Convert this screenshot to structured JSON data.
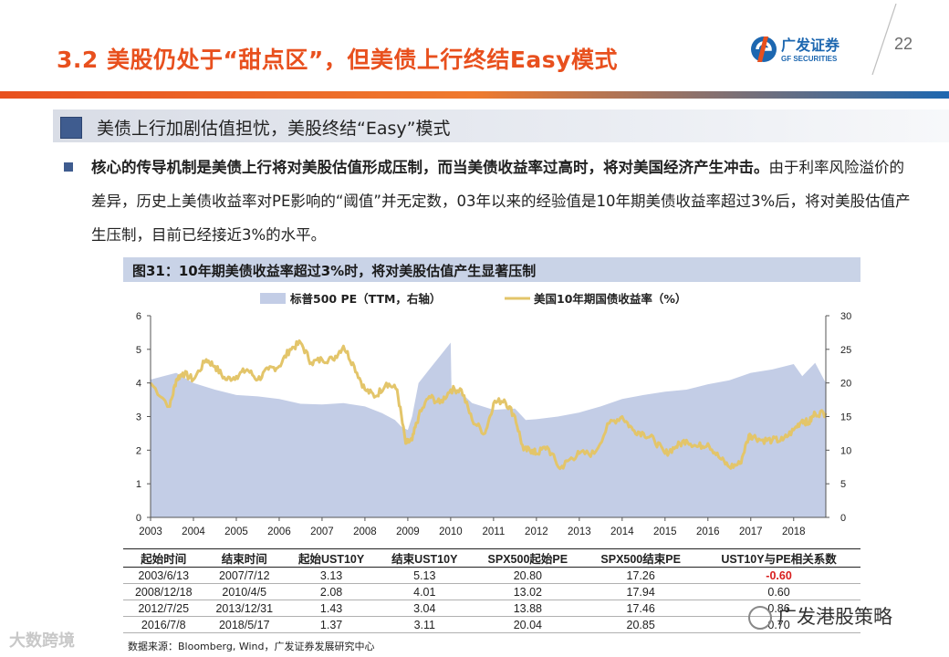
{
  "header": {
    "title": "3.2 美股仍处于“甜点区”，但美债上行终结Easy模式",
    "page_number": "22",
    "logo_cn": "广发证券",
    "logo_en": "GF SECURITIES"
  },
  "colors": {
    "accent": "#e8501e",
    "navy": "#3f5c8f",
    "pe_fill": "#c3cde6",
    "yield_line": "#e3c56a",
    "negative": "#d81e1e"
  },
  "subhead": "美债上行加剧估值担忧，美股终结“Easy”模式",
  "paragraph": {
    "bold": "核心的传导机制是美债上行将对美股估值形成压制，而当美债收益率过高时，将对美国经济产生冲击。",
    "normal": "由于利率风险溢价的差异，历史上美债收益率对PE影响的“阈值”并无定数，03年以来的经验值是10年期美债收益率超过3%后，将对美股估值产生压制，目前已经接近3%的水平。"
  },
  "figure_title": "图31：10年期美债收益率超过3%时，将对美股估值产生显著压制",
  "chart_data": {
    "type": "area",
    "xlabel": "",
    "x_ticks": [
      "2003",
      "2004",
      "2005",
      "2006",
      "2007",
      "2008",
      "2009",
      "2010",
      "2011",
      "2012",
      "2013",
      "2014",
      "2015",
      "2016",
      "2017",
      "2018"
    ],
    "xlim": [
      2003.0,
      2018.75
    ],
    "y_left": {
      "label": "",
      "ylim": [
        0,
        6
      ],
      "ticks": [
        "0",
        "1",
        "2",
        "3",
        "4",
        "5",
        "6"
      ]
    },
    "y_right": {
      "label": "",
      "ylim": [
        0,
        30
      ],
      "ticks": [
        "0",
        "5",
        "10",
        "15",
        "20",
        "25",
        "30"
      ]
    },
    "legend_placement": "top",
    "series": [
      {
        "name": "标普500 PE（TTM，右轴）",
        "axis": "right",
        "style": "area",
        "x": [
          2003.0,
          2003.3,
          2003.6,
          2004.0,
          2004.5,
          2005.0,
          2005.5,
          2006.0,
          2006.5,
          2007.0,
          2007.5,
          2008.0,
          2008.4,
          2008.7,
          2008.85,
          2009.0,
          2009.1,
          2009.25,
          2009.5,
          2009.75,
          2010.0,
          2010.02,
          2010.25,
          2010.5,
          2011.0,
          2011.5,
          2011.75,
          2012.0,
          2012.5,
          2013.0,
          2013.5,
          2014.0,
          2014.5,
          2015.0,
          2015.5,
          2016.0,
          2016.5,
          2017.0,
          2017.5,
          2018.0,
          2018.2,
          2018.5,
          2018.75
        ],
        "values": [
          20.5,
          21.0,
          21.5,
          20.0,
          19.0,
          18.2,
          18.0,
          17.6,
          16.9,
          16.8,
          17.0,
          16.5,
          15.5,
          14.5,
          13.5,
          13.0,
          15.0,
          20.0,
          22.0,
          24.0,
          26.0,
          19.0,
          18.5,
          17.0,
          16.0,
          16.2,
          14.5,
          14.6,
          15.0,
          15.6,
          16.5,
          17.6,
          18.2,
          18.7,
          19.0,
          19.8,
          20.4,
          21.5,
          22.0,
          22.8,
          21.0,
          23.0,
          20.0
        ]
      },
      {
        "name": "美国10年期国债收益率（%）",
        "axis": "left",
        "style": "line",
        "x": [
          2003.0,
          2003.45,
          2003.6,
          2003.75,
          2004.0,
          2004.3,
          2004.5,
          2004.75,
          2005.0,
          2005.25,
          2005.5,
          2005.75,
          2006.0,
          2006.25,
          2006.5,
          2006.75,
          2007.0,
          2007.25,
          2007.5,
          2007.75,
          2008.0,
          2008.25,
          2008.5,
          2008.75,
          2008.95,
          2009.1,
          2009.25,
          2009.5,
          2009.75,
          2010.0,
          2010.25,
          2010.5,
          2010.8,
          2011.0,
          2011.25,
          2011.5,
          2011.7,
          2011.9,
          2012.0,
          2012.25,
          2012.55,
          2012.75,
          2013.0,
          2013.35,
          2013.7,
          2014.0,
          2014.25,
          2014.5,
          2014.75,
          2015.0,
          2015.25,
          2015.5,
          2015.75,
          2016.0,
          2016.25,
          2016.5,
          2016.75,
          2016.95,
          2017.0,
          2017.25,
          2017.5,
          2017.75,
          2018.0,
          2018.2,
          2018.35,
          2018.5,
          2018.75
        ],
        "values": [
          4.0,
          3.3,
          4.1,
          4.3,
          4.1,
          4.7,
          4.5,
          4.1,
          4.2,
          4.4,
          4.1,
          4.4,
          4.5,
          5.0,
          5.2,
          4.6,
          4.7,
          4.7,
          5.1,
          4.5,
          3.8,
          3.6,
          4.0,
          3.8,
          2.2,
          2.3,
          3.0,
          3.6,
          3.4,
          3.8,
          3.8,
          2.9,
          2.5,
          3.4,
          3.5,
          3.0,
          2.0,
          2.0,
          1.9,
          2.1,
          1.45,
          1.7,
          1.9,
          1.9,
          2.8,
          3.0,
          2.6,
          2.5,
          2.3,
          1.9,
          2.1,
          2.3,
          2.1,
          2.2,
          1.8,
          1.5,
          1.6,
          2.4,
          2.45,
          2.3,
          2.3,
          2.3,
          2.6,
          2.9,
          2.8,
          3.1,
          3.1
        ]
      }
    ]
  },
  "table": {
    "headers": [
      "起始时间",
      "结束时间",
      "起始UST10Y",
      "结束UST10Y",
      "SPX500起始PE",
      "SPX500结束PE",
      "UST10Y与PE相关系数"
    ],
    "rows": [
      [
        "2003/6/13",
        "2007/7/12",
        "3.13",
        "5.13",
        "20.80",
        "17.26",
        "-0.60"
      ],
      [
        "2008/12/18",
        "2010/4/5",
        "2.08",
        "4.01",
        "13.02",
        "17.94",
        "0.60"
      ],
      [
        "2012/7/25",
        "2013/12/31",
        "1.43",
        "3.04",
        "13.88",
        "17.46",
        "0.86"
      ],
      [
        "2016/7/8",
        "2018/5/17",
        "1.37",
        "3.11",
        "20.04",
        "20.85",
        "0.70"
      ]
    ]
  },
  "source": "数据来源：Bloomberg, Wind，广发证券发展研究中心",
  "watermark_left": "大数跨境",
  "watermark_right": "广发港股策略"
}
